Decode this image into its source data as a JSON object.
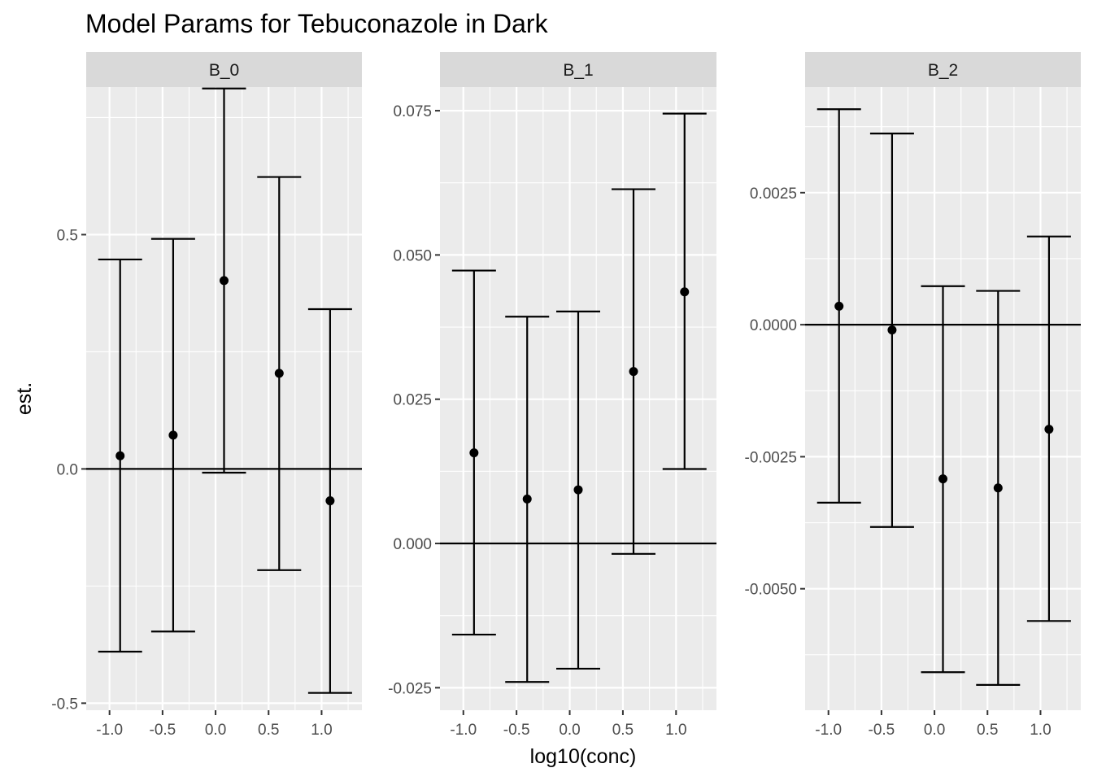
{
  "chart_data": {
    "type": "errorbar",
    "title": "Model Params for Tebuconazole in Dark",
    "xlabel": "log10(conc)",
    "ylabel": "est.",
    "x_ticks": [
      "-1.0",
      "-0.5",
      "0.0",
      "0.5",
      "1.0"
    ],
    "reference_line_y": 0,
    "grid": true,
    "facets": [
      {
        "name": "B_0",
        "y_ticks": [
          "0.5",
          "0.0",
          "-0.5"
        ],
        "y_tick_values": [
          0.5,
          0.0,
          -0.5
        ],
        "ylim": [
          -0.515,
          0.815
        ],
        "points": [
          {
            "x": -0.9,
            "y": 0.028,
            "ymin": -0.39,
            "ymax": 0.447
          },
          {
            "x": -0.4,
            "y": 0.072,
            "ymin": -0.347,
            "ymax": 0.491
          },
          {
            "x": 0.08,
            "y": 0.402,
            "ymin": -0.008,
            "ymax": 0.812
          },
          {
            "x": 0.6,
            "y": 0.204,
            "ymin": -0.216,
            "ymax": 0.623
          },
          {
            "x": 1.08,
            "y": -0.068,
            "ymin": -0.478,
            "ymax": 0.341
          }
        ]
      },
      {
        "name": "B_1",
        "y_ticks": [
          "0.075",
          "0.050",
          "0.025",
          "0.000",
          "-0.025"
        ],
        "y_tick_values": [
          0.075,
          0.05,
          0.025,
          0.0,
          -0.025
        ],
        "ylim": [
          -0.0289,
          0.0791
        ],
        "points": [
          {
            "x": -0.9,
            "y": 0.0157,
            "ymin": -0.0158,
            "ymax": 0.0473
          },
          {
            "x": -0.4,
            "y": 0.0077,
            "ymin": -0.024,
            "ymax": 0.0393
          },
          {
            "x": 0.08,
            "y": 0.0093,
            "ymin": -0.0217,
            "ymax": 0.0402
          },
          {
            "x": 0.6,
            "y": 0.0298,
            "ymin": -0.0018,
            "ymax": 0.0614
          },
          {
            "x": 1.08,
            "y": 0.0436,
            "ymin": 0.0129,
            "ymax": 0.0745
          }
        ]
      },
      {
        "name": "B_2",
        "y_ticks": [
          "0.0025",
          "0.0000",
          "-0.0025",
          "-0.0050"
        ],
        "y_tick_values": [
          0.0025,
          0.0,
          -0.0025,
          -0.005
        ],
        "ylim": [
          -0.0073,
          0.0045
        ],
        "points": [
          {
            "x": -0.9,
            "y": 0.00035,
            "ymin": -0.00337,
            "ymax": 0.00408
          },
          {
            "x": -0.4,
            "y": -0.0001,
            "ymin": -0.00383,
            "ymax": 0.00362
          },
          {
            "x": 0.08,
            "y": -0.00292,
            "ymin": -0.00658,
            "ymax": 0.00073
          },
          {
            "x": 0.6,
            "y": -0.00309,
            "ymin": -0.00682,
            "ymax": 0.00064
          },
          {
            "x": 1.08,
            "y": -0.00198,
            "ymin": -0.00561,
            "ymax": 0.00167
          }
        ]
      }
    ]
  }
}
